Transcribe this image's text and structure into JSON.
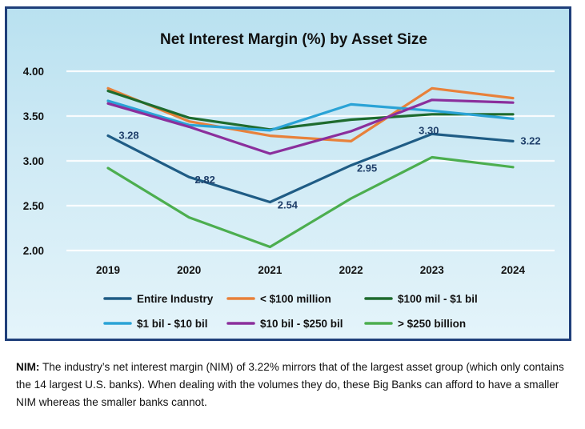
{
  "chart_data": {
    "type": "line",
    "title": "Net Interest Margin (%) by Asset Size",
    "xlabel": "",
    "ylabel": "",
    "categories": [
      "2019",
      "2020",
      "2021",
      "2022",
      "2023",
      "2024"
    ],
    "ylim": [
      2.0,
      4.0
    ],
    "yticks": [
      2.0,
      2.5,
      3.0,
      3.5,
      4.0
    ],
    "ytick_labels": [
      "2.00",
      "2.50",
      "3.00",
      "3.50",
      "4.00"
    ],
    "grid": true,
    "legend_position": "bottom",
    "series": [
      {
        "name": "Entire Industry",
        "color": "#1f5c85",
        "values": [
          3.28,
          2.82,
          2.54,
          2.95,
          3.3,
          3.22
        ],
        "data_labels": [
          "3.28",
          "2.82",
          "2.54",
          "2.95",
          "3.30",
          "3.22"
        ]
      },
      {
        "name": "< $100 million",
        "color": "#e8813a",
        "values": [
          3.81,
          3.44,
          3.28,
          3.22,
          3.81,
          3.7
        ]
      },
      {
        "name": "$100 mil - $1 bil",
        "color": "#1e6b2e",
        "values": [
          3.78,
          3.48,
          3.35,
          3.46,
          3.52,
          3.52
        ]
      },
      {
        "name": "$1 bil - $10 bil",
        "color": "#2aa3d6",
        "values": [
          3.67,
          3.4,
          3.34,
          3.63,
          3.56,
          3.47
        ]
      },
      {
        "name": "$10 bil - $250 bil",
        "color": "#8b2f9c",
        "values": [
          3.64,
          3.38,
          3.08,
          3.33,
          3.68,
          3.65
        ]
      },
      {
        "name": "> $250 billion",
        "color": "#4cae4f",
        "values": [
          2.92,
          2.37,
          2.04,
          2.58,
          3.04,
          2.93
        ]
      }
    ]
  },
  "caption": {
    "label": "NIM:",
    "text": "The industry’s net interest margin (NIM) of 3.22% mirrors that of the largest asset group (which only contains the 14 largest U.S. banks). When dealing with the volumes they do, these Big Banks can afford to have a smaller NIM whereas the smaller banks cannot."
  }
}
